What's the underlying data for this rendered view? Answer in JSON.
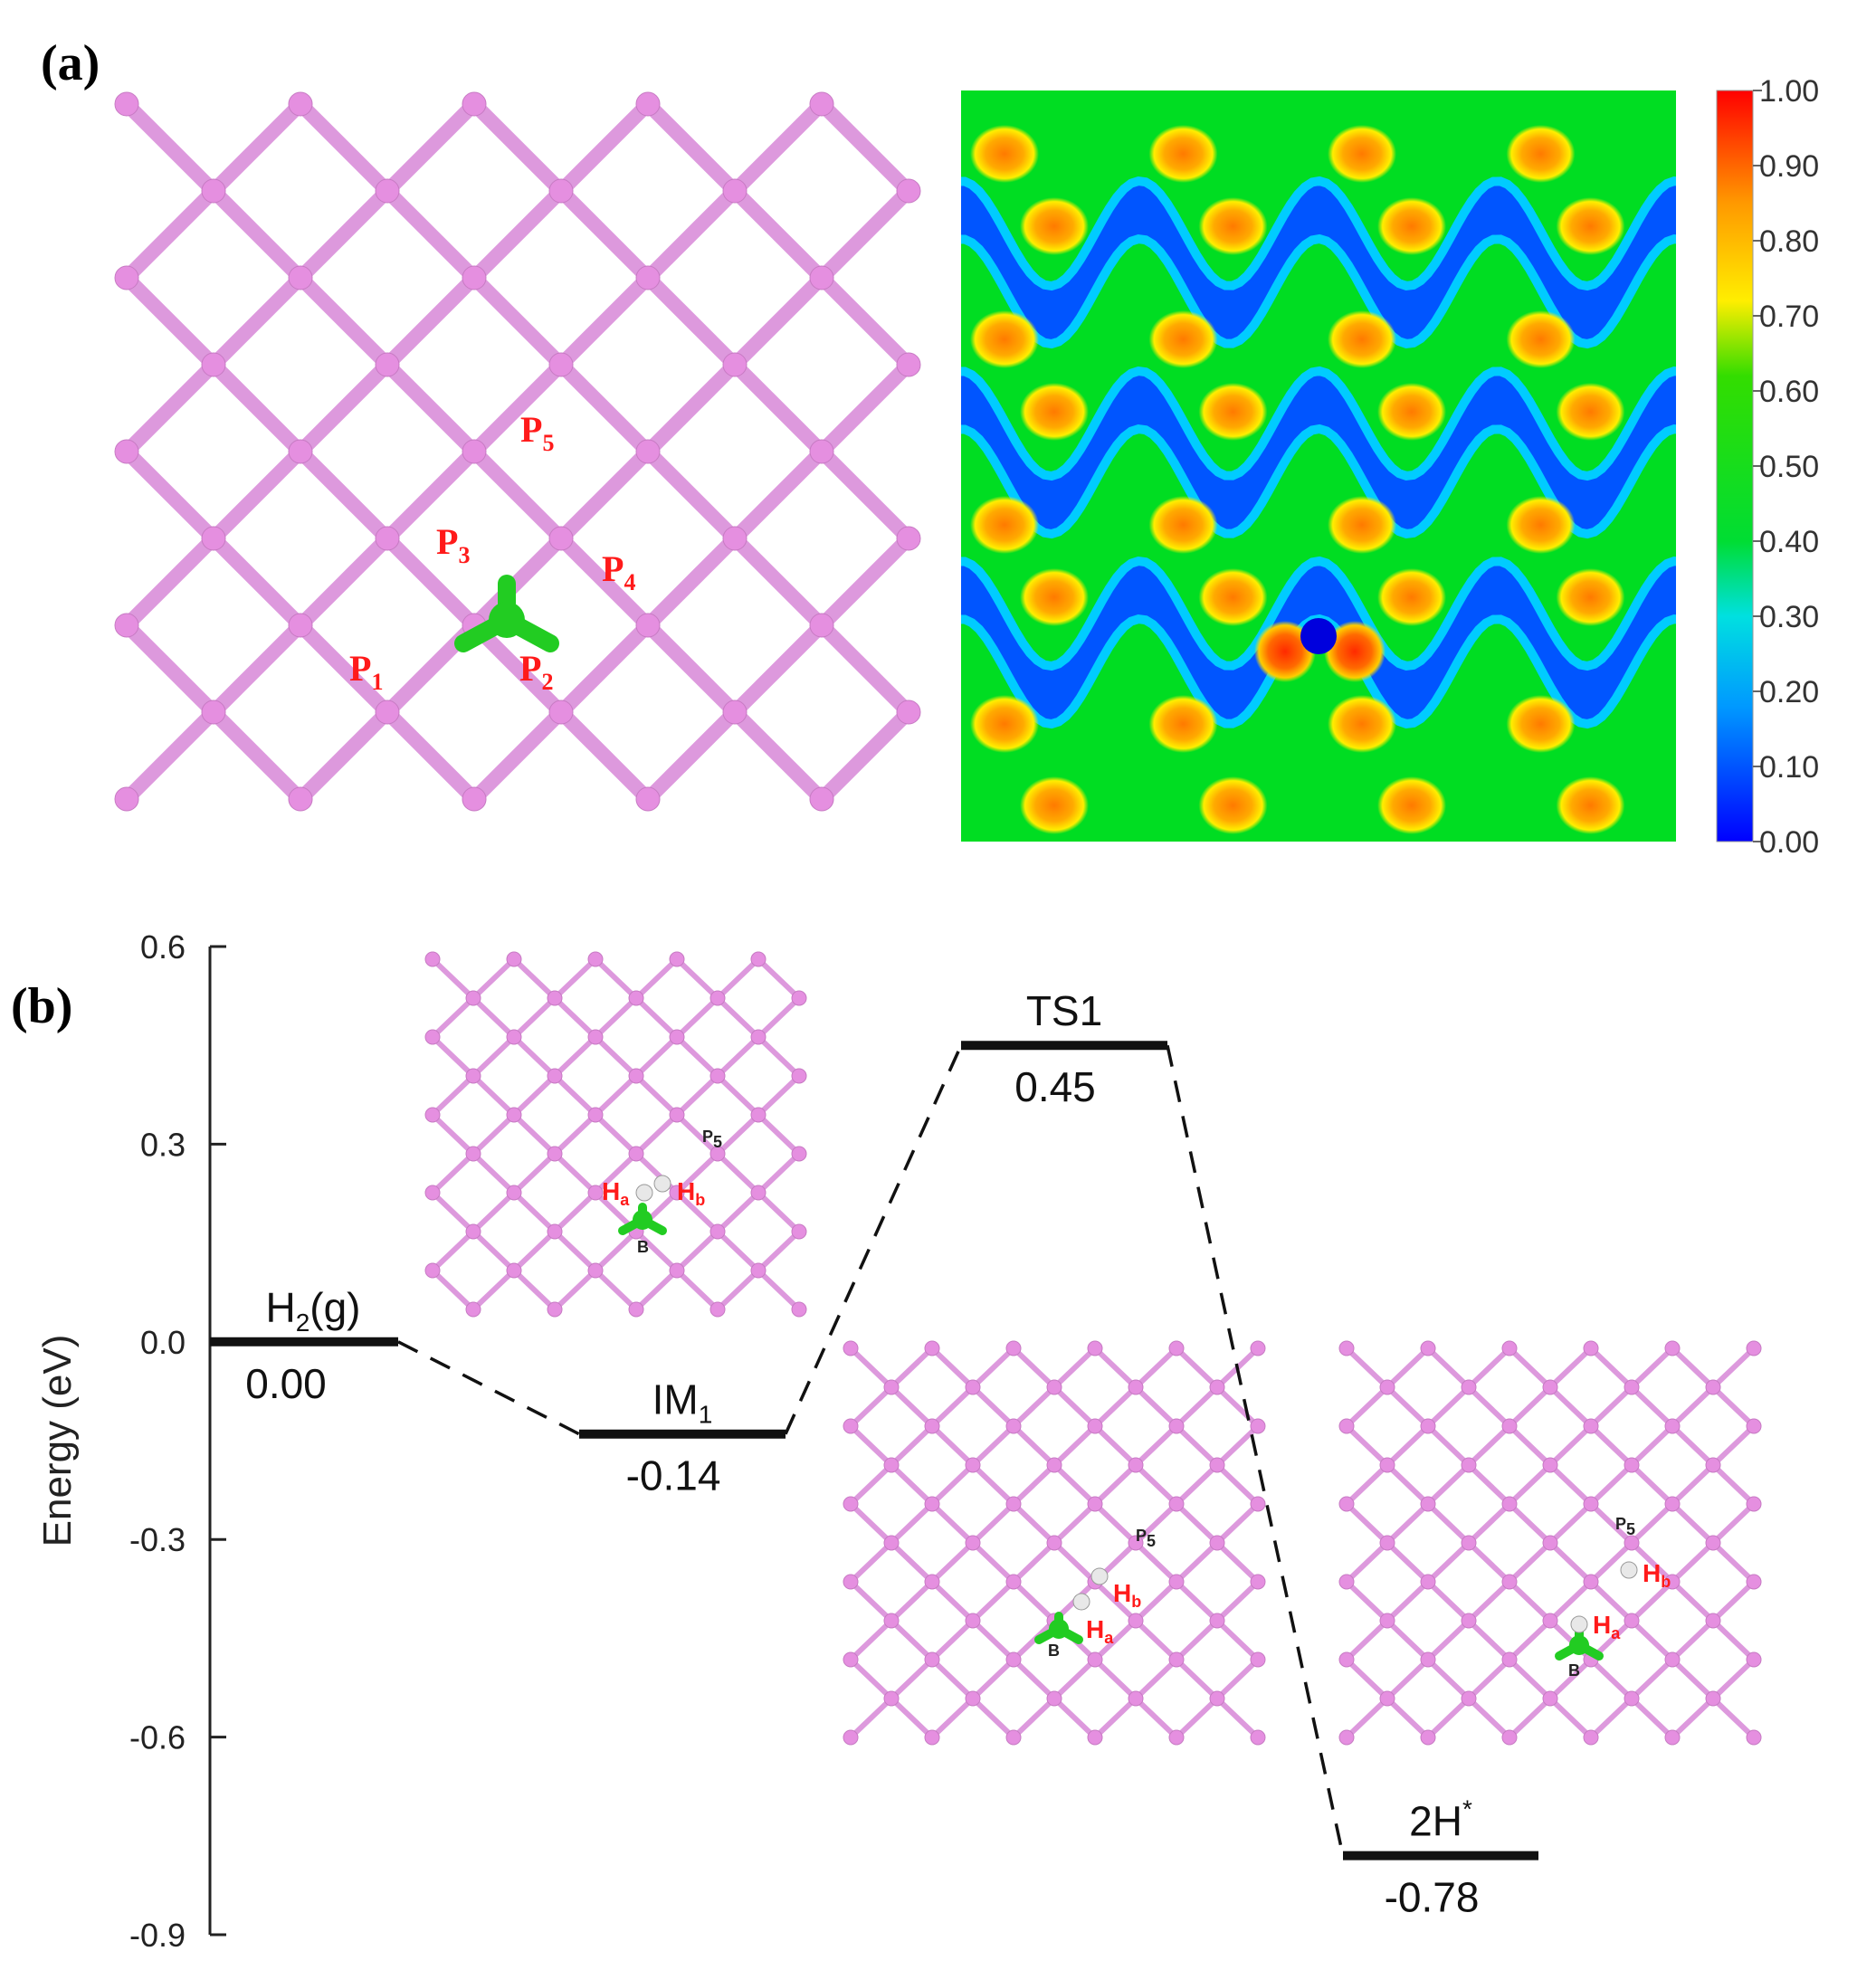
{
  "panel_a": {
    "label": "(a)",
    "site_labels": [
      {
        "main": "P",
        "sub": "1"
      },
      {
        "main": "P",
        "sub": "2"
      },
      {
        "main": "P",
        "sub": "3"
      },
      {
        "main": "P",
        "sub": "4"
      },
      {
        "main": "P",
        "sub": "5"
      }
    ],
    "colorbar": {
      "ticks": [
        "1.00",
        "0.90",
        "0.80",
        "0.70",
        "0.60",
        "0.50",
        "0.40",
        "0.30",
        "0.20",
        "0.10",
        "0.00"
      ],
      "colors": [
        "#0000ff",
        "#00ccff",
        "#00e000",
        "#33dd00",
        "#ffee00",
        "#ff8800",
        "#ff0000"
      ]
    },
    "colors": {
      "atom": "#e58fe0",
      "bond": "#dd99dd",
      "boron": "#22cc22"
    }
  },
  "panel_b": {
    "label": "(b)",
    "chart_data": {
      "type": "energy_profile",
      "ylabel": "Energy (eV)",
      "ylim": [
        -0.9,
        0.6
      ],
      "yticks": [
        "0.6",
        "0.3",
        "0.0",
        "-0.3",
        "-0.6",
        "-0.9"
      ],
      "ytick_values": [
        0.6,
        0.3,
        0.0,
        -0.3,
        -0.6,
        -0.9
      ],
      "states": [
        {
          "name": "H",
          "sub": "2",
          "suffix": "(g)",
          "energy": 0.0,
          "value_label": "0.00"
        },
        {
          "name": "IM",
          "sub": "1",
          "suffix": "",
          "energy": -0.14,
          "value_label": "-0.14"
        },
        {
          "name": "TS1",
          "sub": "",
          "suffix": "",
          "energy": 0.45,
          "value_label": "0.45"
        },
        {
          "name": "2H",
          "sup": "*",
          "suffix": "",
          "energy": -0.78,
          "value_label": "-0.78"
        }
      ]
    },
    "insets": [
      {
        "labels": {
          "ha": "H",
          "ha_sub": "a",
          "hb": "H",
          "hb_sub": "b",
          "p": "P",
          "p_sub": "5",
          "b": "B"
        }
      },
      {
        "labels": {
          "ha": "H",
          "ha_sub": "a",
          "hb": "H",
          "hb_sub": "b",
          "p": "P",
          "p_sub": "5",
          "b": "B"
        }
      },
      {
        "labels": {
          "ha": "H",
          "ha_sub": "a",
          "hb": "H",
          "hb_sub": "b",
          "p": "P",
          "p_sub": "5",
          "b": "B"
        }
      }
    ]
  }
}
